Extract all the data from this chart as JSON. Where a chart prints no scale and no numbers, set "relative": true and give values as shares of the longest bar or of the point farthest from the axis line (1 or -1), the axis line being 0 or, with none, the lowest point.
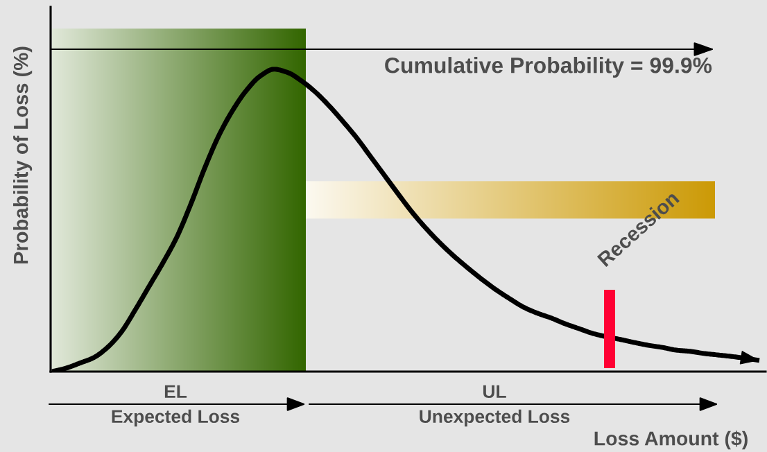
{
  "chart_data": {
    "type": "line",
    "relative": true,
    "xlabel": "Loss Amount ($)",
    "ylabel": "Probability of Loss (%)",
    "categories": [
      null,
      null,
      null,
      null,
      null,
      null,
      null,
      null,
      null,
      null,
      null,
      null,
      null,
      null,
      null,
      null,
      null,
      null,
      null,
      null,
      null,
      null,
      null,
      null,
      null,
      null,
      null,
      null,
      null,
      null,
      null,
      null,
      null,
      null,
      null,
      null,
      null,
      null,
      null,
      null,
      null,
      null,
      null,
      null,
      null,
      null,
      null,
      null,
      null,
      null,
      null,
      null
    ],
    "series": [
      {
        "color": "#000000",
        "values": [
          0.0,
          0.011,
          0.028,
          0.046,
          0.08,
          0.131,
          0.204,
          0.282,
          0.36,
          0.445,
          0.553,
          0.672,
          0.778,
          0.862,
          0.929,
          0.977,
          1.0,
          0.989,
          0.961,
          0.924,
          0.878,
          0.826,
          0.771,
          0.709,
          0.647,
          0.585,
          0.525,
          0.472,
          0.424,
          0.381,
          0.342,
          0.305,
          0.271,
          0.241,
          0.213,
          0.193,
          0.177,
          0.158,
          0.142,
          0.126,
          0.115,
          0.106,
          0.096,
          0.087,
          0.08,
          0.071,
          0.067,
          0.06,
          0.055,
          0.05,
          0.044,
          0.037
        ]
      }
    ],
    "annotations": [
      "Cumulative Probability = 99.9%",
      "Recession",
      "EL",
      "Expected Loss",
      "UL",
      "Unexpected Loss"
    ],
    "line_style": "solid"
  }
}
